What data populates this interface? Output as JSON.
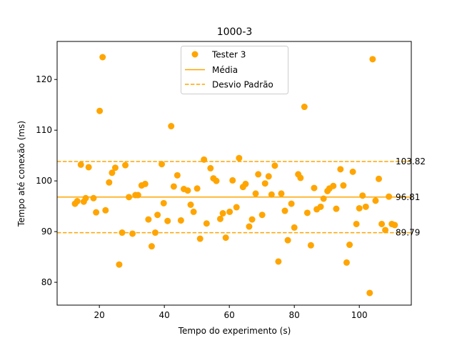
{
  "chart_data": {
    "type": "scatter",
    "title": "1000-3",
    "xlabel": "Tempo do experimento (s)",
    "ylabel": "Tempo até conexão (ms)",
    "xlim": [
      7,
      116
    ],
    "ylim": [
      75.5,
      127.5
    ],
    "xticks": [
      20,
      40,
      60,
      80,
      100
    ],
    "yticks": [
      80,
      90,
      100,
      110,
      120
    ],
    "grid": false,
    "legend_position": "top-center",
    "colors": {
      "series": "#FFA500",
      "axes": "#000000"
    },
    "series": [
      {
        "name": "Tester 3",
        "x": [
          12.5,
          13.2,
          14.3,
          15.2,
          15.8,
          16.7,
          18.2,
          19.0,
          20.1,
          21.0,
          21.9,
          23.0,
          23.9,
          24.9,
          26.1,
          27.0,
          28.0,
          29.1,
          30.2,
          31.1,
          31.9,
          33.0,
          34.1,
          35.1,
          36.1,
          37.2,
          37.9,
          39.2,
          39.8,
          41.0,
          42.1,
          42.9,
          44.0,
          45.1,
          46.0,
          47.2,
          48.1,
          49.0,
          50.1,
          51.0,
          52.2,
          53.0,
          54.2,
          55.1,
          56.0,
          57.2,
          58.0,
          58.9,
          60.1,
          61.0,
          62.2,
          63.0,
          64.2,
          65.0,
          66.1,
          67.0,
          68.1,
          68.9,
          70.1,
          71.0,
          72.1,
          73.0,
          74.0,
          75.1,
          76.0,
          77.1,
          78.0,
          79.1,
          80.0,
          81.2,
          81.9,
          83.1,
          84.0,
          85.1,
          86.1,
          86.9,
          88.1,
          89.0,
          90.2,
          90.8,
          92.0,
          92.9,
          94.2,
          95.1,
          96.1,
          97.0,
          98.0,
          99.1,
          100.0,
          101.0,
          102.0,
          103.2,
          104.1,
          105.0,
          106.0,
          106.9,
          108.0,
          109.1,
          110.0,
          110.9
        ],
        "y": [
          95.5,
          96.0,
          103.2,
          95.9,
          96.6,
          102.7,
          96.6,
          93.8,
          113.8,
          124.4,
          94.2,
          99.7,
          101.6,
          102.6,
          83.5,
          89.8,
          103.1,
          96.8,
          89.6,
          97.2,
          97.2,
          99.1,
          99.4,
          92.4,
          87.1,
          89.8,
          93.3,
          103.3,
          95.6,
          92.1,
          110.8,
          98.9,
          101.1,
          92.2,
          98.4,
          98.1,
          95.3,
          93.9,
          98.5,
          88.6,
          104.2,
          91.6,
          102.5,
          100.5,
          100.0,
          92.5,
          93.6,
          88.8,
          93.9,
          100.1,
          94.8,
          104.5,
          98.8,
          99.4,
          91.0,
          92.4,
          97.5,
          101.3,
          93.3,
          99.5,
          100.9,
          97.3,
          103.0,
          84.1,
          97.5,
          94.1,
          88.3,
          95.5,
          90.8,
          101.3,
          100.6,
          114.6,
          93.7,
          87.3,
          98.6,
          94.4,
          94.9,
          96.5,
          98.0,
          98.5,
          99.0,
          94.5,
          102.3,
          99.1,
          83.9,
          87.4,
          101.8,
          91.5,
          94.6,
          97.1,
          94.9,
          77.9,
          124.0,
          96.1,
          100.4,
          91.5,
          90.3,
          96.9,
          91.5,
          91.3
        ]
      }
    ],
    "mean": {
      "name": "Média",
      "value": 96.81,
      "label": "96.81"
    },
    "std_lines": {
      "name": "Desvio Padrão",
      "upper": 103.82,
      "upper_label": "103.82",
      "lower": 89.79,
      "lower_label": "89.79"
    }
  }
}
